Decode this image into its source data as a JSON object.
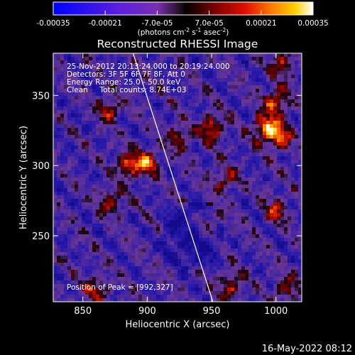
{
  "colorbar": {
    "tick_labels": [
      "-0.00035",
      "-0.00021",
      "-7.0e-05",
      "7.0e-05",
      "0.00021",
      "0.00035"
    ],
    "tick_values": [
      -0.00035,
      -0.00021,
      -7e-05,
      7e-05,
      0.00021,
      0.00035
    ],
    "range": [
      -0.00035,
      0.00035
    ],
    "units_prefix": "(photons cm",
    "units_exp1": "-2",
    "units_mid": " s",
    "units_exp2": "-1",
    "units_mid2": " asec",
    "units_exp3": "-2",
    "units_suffix": ")",
    "colormap": "rainbow-style RHESSI (blue-purple to red-yellow-white)"
  },
  "plot": {
    "title": "Reconstructed RHESSI Image",
    "xlabel": "Heliocentric X (arcsec)",
    "ylabel": "Heliocentric Y (arcsec)",
    "x_ticks": [
      "850",
      "900",
      "950",
      "1000"
    ],
    "x_tick_values": [
      850,
      900,
      950,
      1000
    ],
    "y_ticks": [
      "250",
      "300",
      "350"
    ],
    "y_tick_values": [
      250,
      300,
      350
    ],
    "xlim": [
      827,
      1020
    ],
    "ylim": [
      203,
      380
    ],
    "info": [
      "25-Nov-2012 20:13:24.000 to 20:19:24.000",
      "Detectors: 3F 5F 6F 7F 8F, Att 0",
      "Energy Range: 25.0 - 50.0 keV",
      "Clean     Total counts: 8.74E+03"
    ],
    "peak_label": "Position of Peak = [992,327]",
    "peak": [
      992,
      327
    ],
    "limb_line": [
      [
        889,
        380
      ],
      [
        951,
        203
      ]
    ]
  },
  "footer": {
    "timestamp": "16-May-2022 08:12"
  },
  "chart_data": {
    "type": "heatmap",
    "title": "Reconstructed RHESSI Image",
    "xlabel": "Heliocentric X (arcsec)",
    "ylabel": "Heliocentric Y (arcsec)",
    "xlim": [
      827,
      1020
    ],
    "ylim": [
      203,
      380
    ],
    "value_range": [
      -0.00035,
      0.00035
    ],
    "bright_sources": [
      {
        "x": 885,
        "y": 300,
        "level": "high"
      },
      {
        "x": 900,
        "y": 302,
        "level": "high"
      },
      {
        "x": 872,
        "y": 275,
        "level": "medium"
      },
      {
        "x": 925,
        "y": 320,
        "level": "medium"
      },
      {
        "x": 950,
        "y": 327,
        "level": "high"
      },
      {
        "x": 992,
        "y": 327,
        "level": "peak"
      },
      {
        "x": 1000,
        "y": 345,
        "level": "high"
      },
      {
        "x": 1003,
        "y": 320,
        "level": "high"
      },
      {
        "x": 1005,
        "y": 372,
        "level": "medium"
      },
      {
        "x": 960,
        "y": 290,
        "level": "medium"
      },
      {
        "x": 870,
        "y": 340,
        "level": "medium"
      },
      {
        "x": 950,
        "y": 262,
        "level": "medium"
      },
      {
        "x": 860,
        "y": 212,
        "level": "medium"
      },
      {
        "x": 965,
        "y": 215,
        "level": "medium"
      },
      {
        "x": 1008,
        "y": 212,
        "level": "medium"
      },
      {
        "x": 1000,
        "y": 268,
        "level": "medium"
      }
    ],
    "grid": false
  }
}
